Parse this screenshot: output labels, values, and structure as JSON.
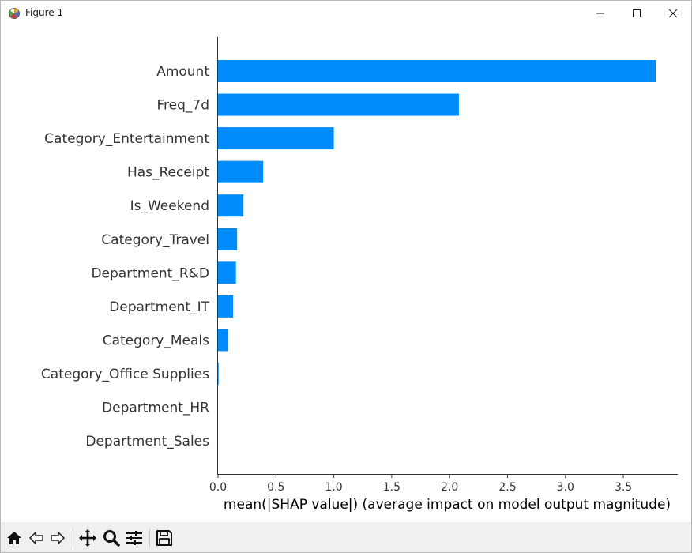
{
  "window": {
    "title": "Figure 1",
    "minimize_icon": "minimize-icon",
    "maximize_icon": "maximize-icon",
    "close_icon": "close-icon"
  },
  "toolbar": {
    "buttons": [
      {
        "name": "home-button",
        "icon": "home-icon"
      },
      {
        "name": "back-button",
        "icon": "arrow-left-icon"
      },
      {
        "name": "forward-button",
        "icon": "arrow-right-icon"
      },
      {
        "name": "pan-button",
        "icon": "move-icon"
      },
      {
        "name": "zoom-button",
        "icon": "magnifier-icon"
      },
      {
        "name": "configure-subplots-button",
        "icon": "sliders-icon"
      },
      {
        "name": "save-button",
        "icon": "floppy-disk-icon"
      }
    ]
  },
  "chart_data": {
    "type": "bar",
    "orientation": "horizontal",
    "categories": [
      "Amount",
      "Freq_7d",
      "Category_Entertainment",
      "Has_Receipt",
      "Is_Weekend",
      "Category_Travel",
      "Department_R&D",
      "Department_IT",
      "Category_Meals",
      "Category_Office Supplies",
      "Department_HR",
      "Department_Sales"
    ],
    "values": [
      3.78,
      2.08,
      1.0,
      0.39,
      0.22,
      0.165,
      0.155,
      0.13,
      0.085,
      0.005,
      0.0,
      0.0
    ],
    "xlabel": "mean(|SHAP value|) (average impact on model output magnitude)",
    "ylabel": "",
    "title": "",
    "xlim": [
      0,
      3.97
    ],
    "xticks": [
      0.0,
      0.5,
      1.0,
      1.5,
      2.0,
      2.5,
      3.0,
      3.5
    ],
    "xtick_labels": [
      "0.0",
      "0.5",
      "1.0",
      "1.5",
      "2.0",
      "2.5",
      "3.0",
      "3.5"
    ],
    "bar_color": "#008bfb",
    "grid": false
  }
}
